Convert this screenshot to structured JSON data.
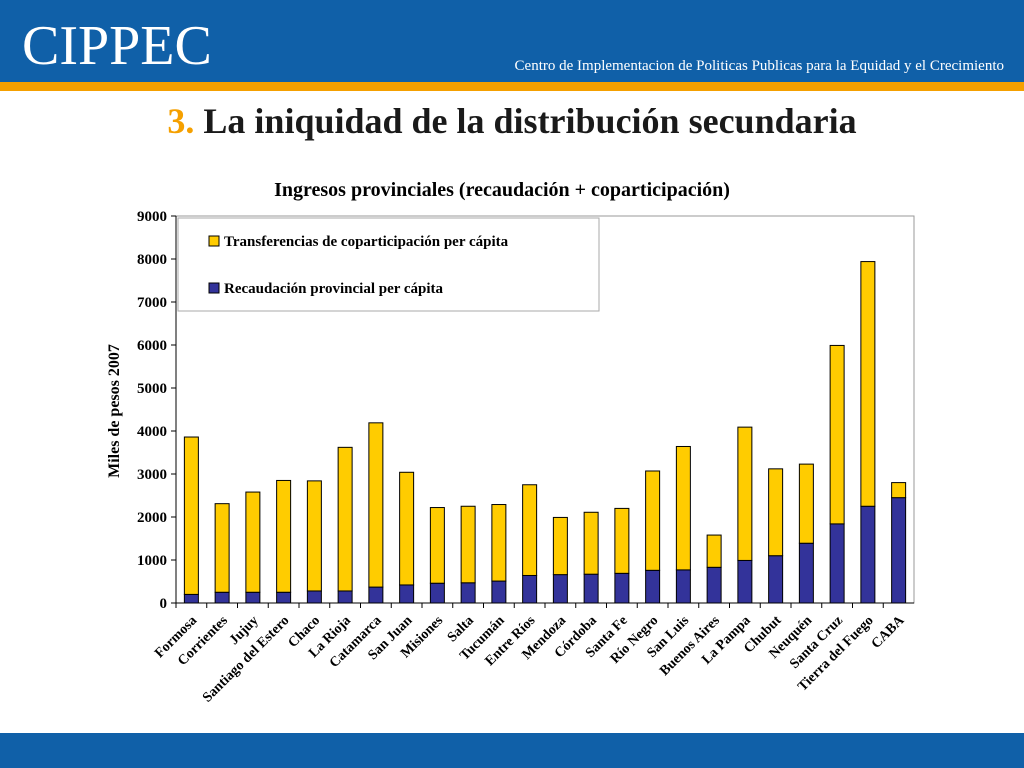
{
  "header": {
    "logo": "CIPPEC",
    "tagline": "Centro de Implementacion de Politicas Publicas para la Equidad y el Crecimiento"
  },
  "slide": {
    "number": "3.",
    "title": "La iniquidad de la distribución secundaria"
  },
  "colors": {
    "header_blue": "#1060A8",
    "accent_orange": "#F5A000",
    "series_transferencias": "#FFCC00",
    "series_recaudacion": "#33339A"
  },
  "chart_data": {
    "type": "bar",
    "stacked": true,
    "title": "Ingresos provinciales (recaudación + coparticipación)",
    "xlabel": "",
    "ylabel": "Miles de pesos 2007",
    "ylim": [
      0,
      9000
    ],
    "yticks": [
      0,
      1000,
      2000,
      3000,
      4000,
      5000,
      6000,
      7000,
      8000,
      9000
    ],
    "legend_position": "top-left",
    "categories": [
      "Formosa",
      "Corrientes",
      "Jujuy",
      "Santiago del Estero",
      "Chaco",
      "La Rioja",
      "Catamarca",
      "San Juan",
      "Misiones",
      "Salta",
      "Tucumán",
      "Entre Ríos",
      "Mendoza",
      "Córdoba",
      "Santa Fe",
      "Río Negro",
      "San Luis",
      "Buenos Aires",
      "La Pampa",
      "Chubut",
      "Neuquén",
      "Santa Cruz",
      "Tierra del Fuego",
      "CABA"
    ],
    "series": [
      {
        "name": "Recaudación provincial per cápita",
        "color": "#33339A",
        "values": [
          200,
          250,
          250,
          250,
          280,
          280,
          370,
          420,
          460,
          470,
          510,
          640,
          660,
          670,
          690,
          760,
          770,
          830,
          990,
          1100,
          1390,
          1840,
          2250,
          2450
        ]
      },
      {
        "name": "Transferencias de coparticipación per cápita",
        "color": "#FFCC00",
        "values": [
          3660,
          2060,
          2330,
          2600,
          2560,
          3340,
          3820,
          2620,
          1760,
          1780,
          1780,
          2110,
          1330,
          1440,
          1510,
          2310,
          2870,
          750,
          3100,
          2020,
          1840,
          4150,
          5690,
          350
        ]
      }
    ],
    "legend_order": [
      "Transferencias de coparticipación per cápita",
      "Recaudación provincial per cápita"
    ]
  }
}
